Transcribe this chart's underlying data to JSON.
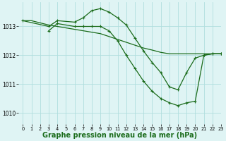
{
  "background_color": "#dff4f4",
  "grid_color": "#b0dede",
  "line_color": "#1a6b1a",
  "xlabel": "Graphe pression niveau de la mer (hPa)",
  "xlabel_fontsize": 7,
  "xlim": [
    -0.5,
    23
  ],
  "ylim": [
    1009.6,
    1013.85
  ],
  "yticks": [
    1010,
    1011,
    1012,
    1013
  ],
  "xticks": [
    0,
    1,
    2,
    3,
    4,
    5,
    6,
    7,
    8,
    9,
    10,
    11,
    12,
    13,
    14,
    15,
    16,
    17,
    18,
    19,
    20,
    21,
    22,
    23
  ],
  "series": [
    {
      "x": [
        0,
        1,
        3,
        4,
        5,
        6,
        7,
        8,
        9,
        10,
        11,
        12,
        13,
        14,
        15,
        16,
        17,
        18,
        19,
        20,
        21,
        22,
        23
      ],
      "y": [
        1013.2,
        1013.2,
        1013.05,
        1013.0,
        1012.95,
        1012.9,
        1012.85,
        1012.8,
        1012.75,
        1012.65,
        1012.55,
        1012.45,
        1012.35,
        1012.25,
        1012.18,
        1012.1,
        1012.05,
        1012.05,
        1012.05,
        1012.05,
        1012.05,
        1012.05,
        1012.05
      ],
      "marker": null,
      "linestyle": "-",
      "linewidth": 0.9
    },
    {
      "x": [
        0,
        3,
        4,
        6,
        7,
        8,
        9,
        10,
        11,
        12,
        13,
        14,
        15,
        16,
        17,
        18,
        19,
        20,
        21,
        22,
        23
      ],
      "y": [
        1013.2,
        1013.0,
        1013.2,
        1013.15,
        1013.3,
        1013.55,
        1013.62,
        1013.5,
        1013.3,
        1013.05,
        1012.6,
        1012.15,
        1011.75,
        1011.4,
        1010.9,
        1010.8,
        1011.4,
        1011.9,
        1012.0,
        1012.05,
        1012.05
      ],
      "marker": "+",
      "linestyle": "-",
      "linewidth": 0.9
    },
    {
      "x": [
        3,
        4,
        6,
        7,
        8,
        9,
        10,
        11,
        12,
        13,
        14,
        15,
        16,
        17,
        18,
        19,
        20,
        21,
        22,
        23
      ],
      "y": [
        1012.85,
        1013.1,
        1013.0,
        1013.0,
        1013.0,
        1013.0,
        1012.85,
        1012.5,
        1012.0,
        1011.55,
        1011.1,
        1010.75,
        1010.5,
        1010.35,
        1010.25,
        1010.35,
        1010.4,
        1012.0,
        1012.05,
        1012.05
      ],
      "marker": "+",
      "linestyle": "-",
      "linewidth": 0.9
    }
  ]
}
